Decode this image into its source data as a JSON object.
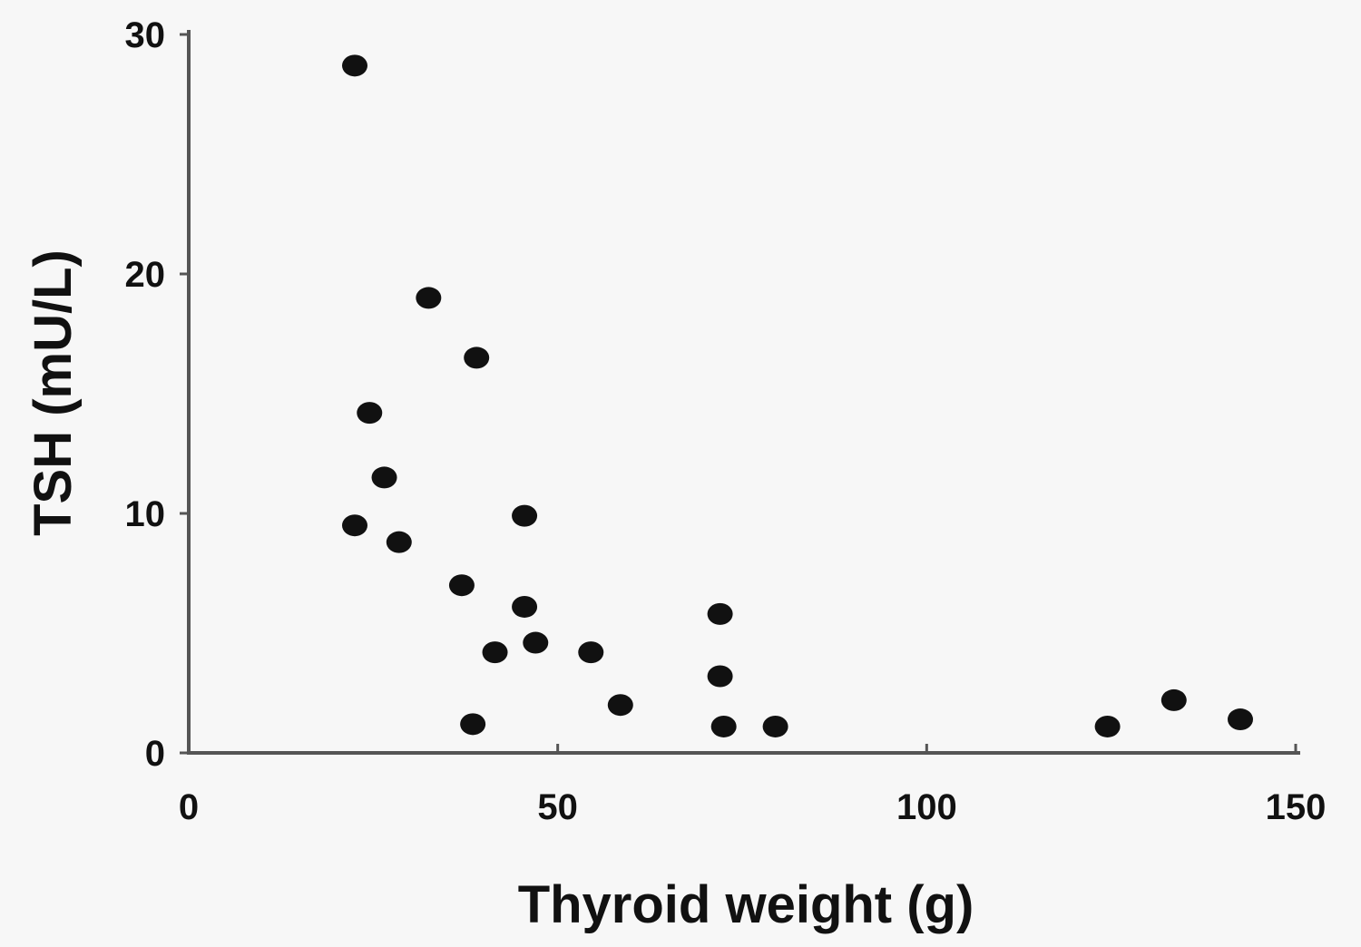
{
  "chart_data": {
    "type": "scatter",
    "xlabel": "Thyroid weight (g)",
    "ylabel": "TSH (mU/L)",
    "xlim": [
      0,
      150
    ],
    "ylim": [
      0,
      30
    ],
    "xticks": [
      "0",
      "50",
      "100",
      "150"
    ],
    "yticks": [
      "0",
      "10",
      "20",
      "30"
    ],
    "grid": false,
    "legend": "none",
    "points": [
      {
        "x": 22.5,
        "y": 28.7
      },
      {
        "x": 32.5,
        "y": 19.0
      },
      {
        "x": 39.0,
        "y": 16.5
      },
      {
        "x": 24.5,
        "y": 14.2
      },
      {
        "x": 26.5,
        "y": 11.5
      },
      {
        "x": 22.5,
        "y": 9.5
      },
      {
        "x": 28.5,
        "y": 8.8
      },
      {
        "x": 45.5,
        "y": 9.9
      },
      {
        "x": 37.0,
        "y": 7.0
      },
      {
        "x": 45.5,
        "y": 6.1
      },
      {
        "x": 41.5,
        "y": 4.2
      },
      {
        "x": 47.0,
        "y": 4.6
      },
      {
        "x": 54.5,
        "y": 4.2
      },
      {
        "x": 58.5,
        "y": 2.0
      },
      {
        "x": 38.5,
        "y": 1.2
      },
      {
        "x": 72.0,
        "y": 5.8
      },
      {
        "x": 72.0,
        "y": 3.2
      },
      {
        "x": 72.5,
        "y": 1.1
      },
      {
        "x": 79.5,
        "y": 1.1
      },
      {
        "x": 124.5,
        "y": 1.1
      },
      {
        "x": 133.5,
        "y": 2.2
      },
      {
        "x": 142.5,
        "y": 1.4
      }
    ]
  }
}
